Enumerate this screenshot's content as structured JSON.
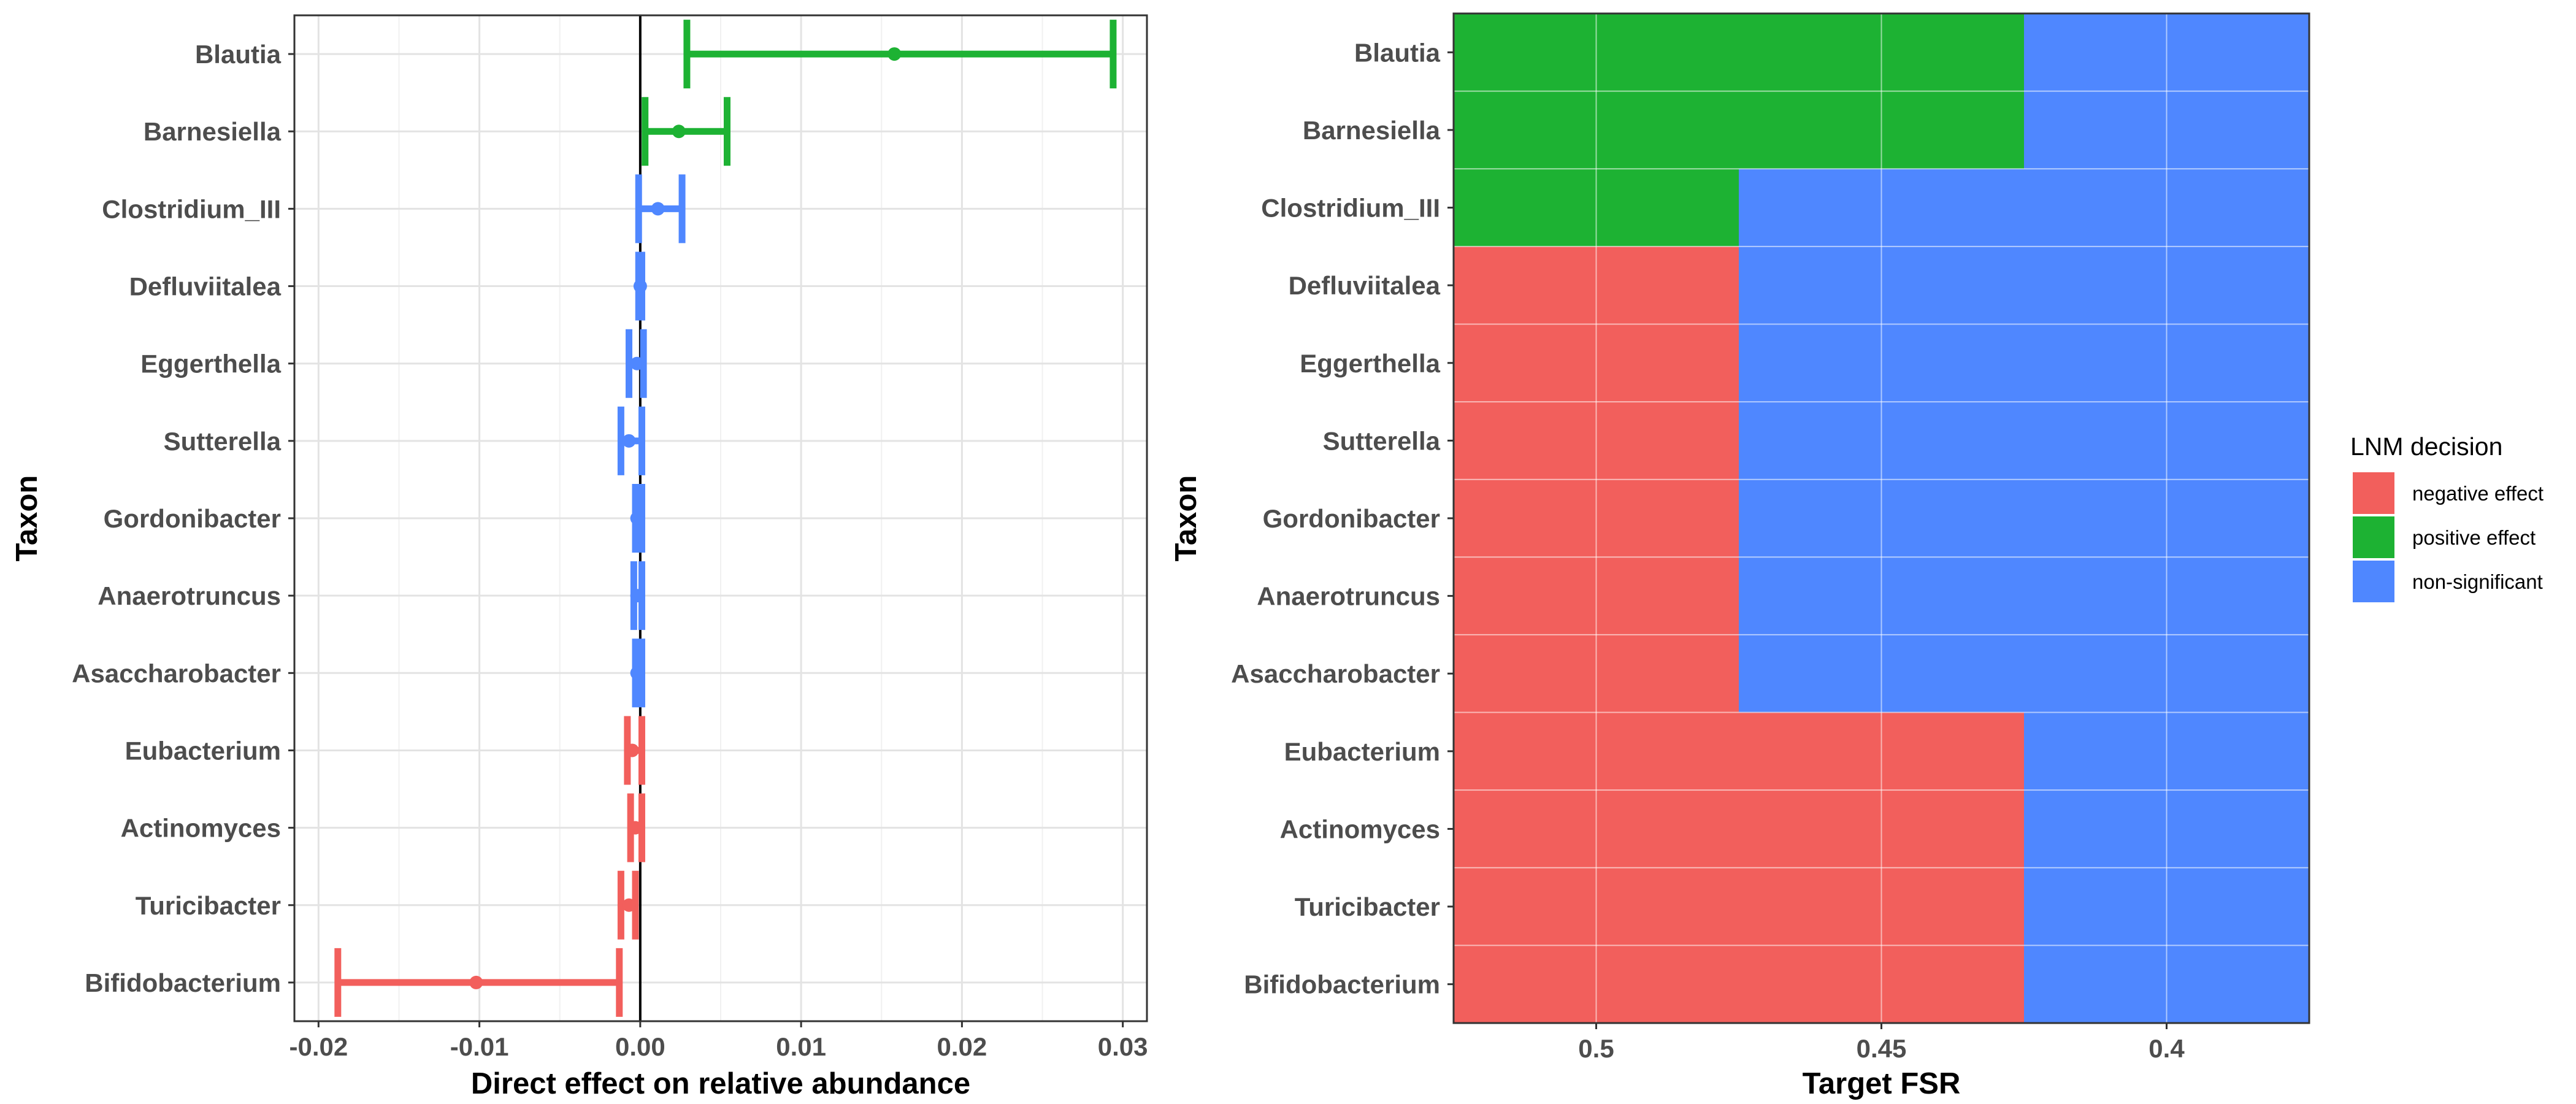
{
  "colors": {
    "negative effect": "#F25F5C",
    "positive effect": "#1DB233",
    "non-significant": "#4F87FF"
  },
  "chart_data": [
    {
      "type": "scatter",
      "subtype": "forest-plot-with-error-bars",
      "xlabel": "Direct effect on relative abundance",
      "ylabel": "Taxon",
      "xlim": [
        -0.0215,
        0.0315
      ],
      "xticks": [
        -0.02,
        -0.01,
        0.0,
        0.01,
        0.02,
        0.03
      ],
      "xtick_labels": [
        "-0.02",
        "-0.01",
        "0.00",
        "0.01",
        "0.02",
        "0.03"
      ],
      "reference_line_x": 0,
      "grid": true,
      "taxa": [
        "Blautia",
        "Barnesiella",
        "Clostridium_III",
        "Defluviitalea",
        "Eggerthella",
        "Sutterella",
        "Gordonibacter",
        "Anaerotruncus",
        "Asaccharobacter",
        "Eubacterium",
        "Actinomyces",
        "Turicibacter",
        "Bifidobacterium"
      ],
      "estimates": [
        0.0158,
        0.0024,
        0.0011,
        0.0,
        -0.0002,
        -0.0007,
        -0.0002,
        -0.0002,
        -0.0002,
        -0.0005,
        -0.0003,
        -0.0007,
        -0.0102
      ],
      "lower": [
        0.0029,
        0.0003,
        -0.0001,
        -0.0001,
        -0.0007,
        -0.0012,
        -0.0003,
        -0.0004,
        -0.0003,
        -0.0008,
        -0.0006,
        -0.0012,
        -0.0188
      ],
      "upper": [
        0.0294,
        0.0054,
        0.0026,
        0.0001,
        0.0002,
        0.0001,
        0.0001,
        0.0001,
        0.0001,
        0.0001,
        0.0001,
        -0.0003,
        -0.0013
      ],
      "decision": [
        "positive effect",
        "positive effect",
        "non-significant",
        "non-significant",
        "non-significant",
        "non-significant",
        "non-significant",
        "non-significant",
        "non-significant",
        "negative effect",
        "negative effect",
        "negative effect",
        "negative effect"
      ]
    },
    {
      "type": "heatmap",
      "xlabel": "Target FSR",
      "ylabel": "Taxon",
      "x": [
        "0.5",
        "0.45",
        "0.4"
      ],
      "y": [
        "Blautia",
        "Barnesiella",
        "Clostridium_III",
        "Defluviitalea",
        "Eggerthella",
        "Sutterella",
        "Gordonibacter",
        "Anaerotruncus",
        "Asaccharobacter",
        "Eubacterium",
        "Actinomyces",
        "Turicibacter",
        "Bifidobacterium"
      ],
      "values": [
        [
          "positive effect",
          "positive effect",
          "non-significant"
        ],
        [
          "positive effect",
          "positive effect",
          "non-significant"
        ],
        [
          "positive effect",
          "non-significant",
          "non-significant"
        ],
        [
          "negative effect",
          "non-significant",
          "non-significant"
        ],
        [
          "negative effect",
          "non-significant",
          "non-significant"
        ],
        [
          "negative effect",
          "non-significant",
          "non-significant"
        ],
        [
          "negative effect",
          "non-significant",
          "non-significant"
        ],
        [
          "negative effect",
          "non-significant",
          "non-significant"
        ],
        [
          "negative effect",
          "non-significant",
          "non-significant"
        ],
        [
          "negative effect",
          "negative effect",
          "non-significant"
        ],
        [
          "negative effect",
          "negative effect",
          "non-significant"
        ],
        [
          "negative effect",
          "negative effect",
          "non-significant"
        ],
        [
          "negative effect",
          "negative effect",
          "non-significant"
        ]
      ],
      "legend": {
        "title": "LNM decision",
        "entries": [
          "negative effect",
          "positive effect",
          "non-significant"
        ],
        "position": "right"
      }
    }
  ]
}
